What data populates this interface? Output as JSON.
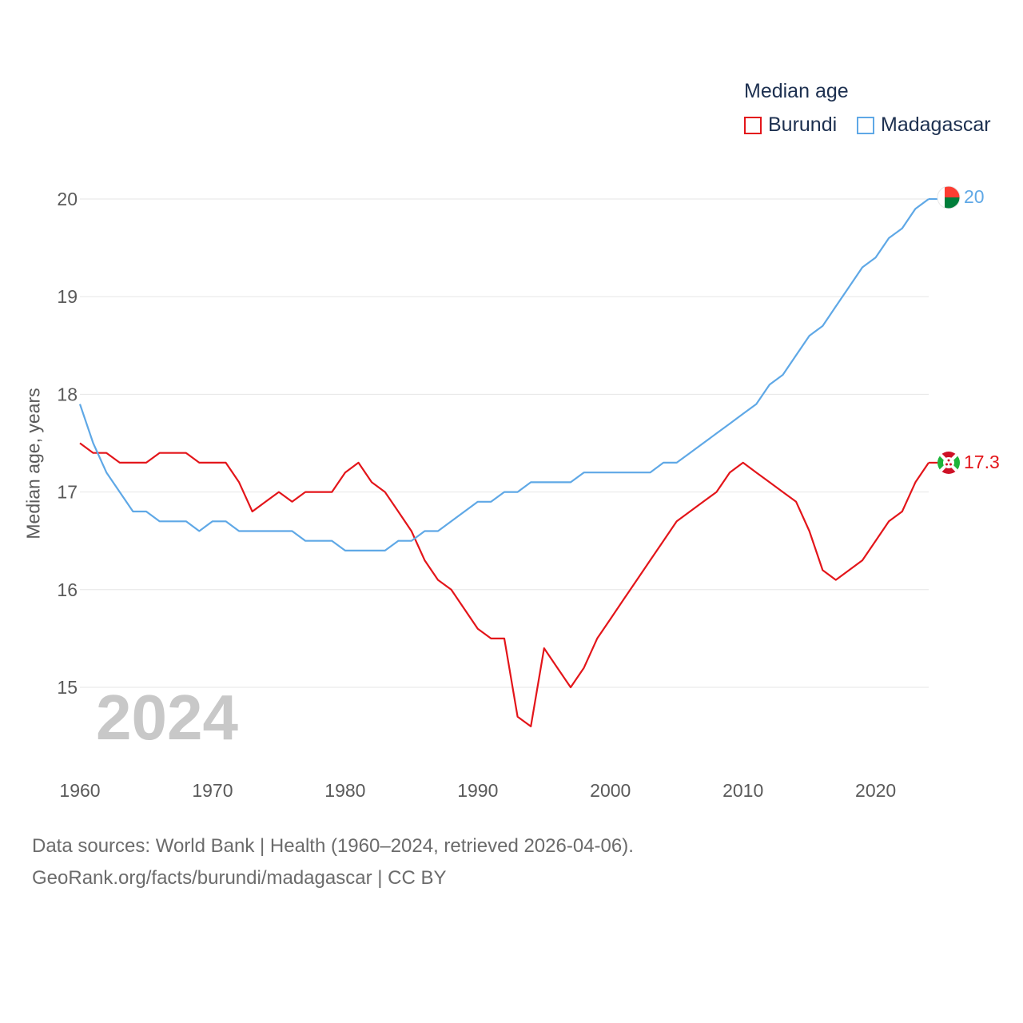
{
  "legend": {
    "title": "Median age",
    "items": [
      {
        "label": "Burundi",
        "color": "#e3151a"
      },
      {
        "label": "Madagascar",
        "color": "#5fa8e6"
      }
    ]
  },
  "year_watermark": "2024",
  "footer": {
    "line1": "Data sources: World Bank | Health (1960–2024, retrieved 2026-04-06).",
    "line2": "GeoRank.org/facts/burundi/madagascar | CC BY"
  },
  "chart_data": {
    "type": "line",
    "title": "Median age",
    "xlabel": "",
    "ylabel": "Median age, years",
    "xlim": [
      1960,
      2024
    ],
    "ylim": [
      14.4,
      20.2
    ],
    "xticks": [
      1960,
      1970,
      1980,
      1990,
      2000,
      2010,
      2020
    ],
    "yticks": [
      15,
      16,
      17,
      18,
      19,
      20
    ],
    "grid": true,
    "legend_position": "top-right",
    "x": [
      1960,
      1961,
      1962,
      1963,
      1964,
      1965,
      1966,
      1967,
      1968,
      1969,
      1970,
      1971,
      1972,
      1973,
      1974,
      1975,
      1976,
      1977,
      1978,
      1979,
      1980,
      1981,
      1982,
      1983,
      1984,
      1985,
      1986,
      1987,
      1988,
      1989,
      1990,
      1991,
      1992,
      1993,
      1994,
      1995,
      1996,
      1997,
      1998,
      1999,
      2000,
      2001,
      2002,
      2003,
      2004,
      2005,
      2006,
      2007,
      2008,
      2009,
      2010,
      2011,
      2012,
      2013,
      2014,
      2015,
      2016,
      2017,
      2018,
      2019,
      2020,
      2021,
      2022,
      2023,
      2024
    ],
    "series": [
      {
        "name": "Burundi",
        "color": "#e3151a",
        "end_label": "17.3",
        "values": [
          17.5,
          17.4,
          17.4,
          17.3,
          17.3,
          17.3,
          17.4,
          17.4,
          17.4,
          17.3,
          17.3,
          17.3,
          17.1,
          16.8,
          16.9,
          17.0,
          16.9,
          17.0,
          17.0,
          17.0,
          17.2,
          17.3,
          17.1,
          17.0,
          16.8,
          16.6,
          16.3,
          16.1,
          16.0,
          15.8,
          15.6,
          15.5,
          15.5,
          14.7,
          14.6,
          15.4,
          15.2,
          15.0,
          15.2,
          15.5,
          15.7,
          15.9,
          16.1,
          16.3,
          16.5,
          16.7,
          16.8,
          16.9,
          17.0,
          17.2,
          17.3,
          17.2,
          17.1,
          17.0,
          16.9,
          16.6,
          16.2,
          16.1,
          16.2,
          16.3,
          16.5,
          16.7,
          16.8,
          17.1,
          17.3
        ]
      },
      {
        "name": "Madagascar",
        "color": "#5fa8e6",
        "end_label": "20",
        "values": [
          17.9,
          17.5,
          17.2,
          17.0,
          16.8,
          16.8,
          16.7,
          16.7,
          16.7,
          16.6,
          16.7,
          16.7,
          16.6,
          16.6,
          16.6,
          16.6,
          16.6,
          16.5,
          16.5,
          16.5,
          16.4,
          16.4,
          16.4,
          16.4,
          16.5,
          16.5,
          16.6,
          16.6,
          16.7,
          16.8,
          16.9,
          16.9,
          17.0,
          17.0,
          17.1,
          17.1,
          17.1,
          17.1,
          17.2,
          17.2,
          17.2,
          17.2,
          17.2,
          17.2,
          17.3,
          17.3,
          17.4,
          17.5,
          17.6,
          17.7,
          17.8,
          17.9,
          18.1,
          18.2,
          18.4,
          18.6,
          18.7,
          18.9,
          19.1,
          19.3,
          19.4,
          19.6,
          19.7,
          19.9,
          20.0
        ]
      }
    ]
  }
}
